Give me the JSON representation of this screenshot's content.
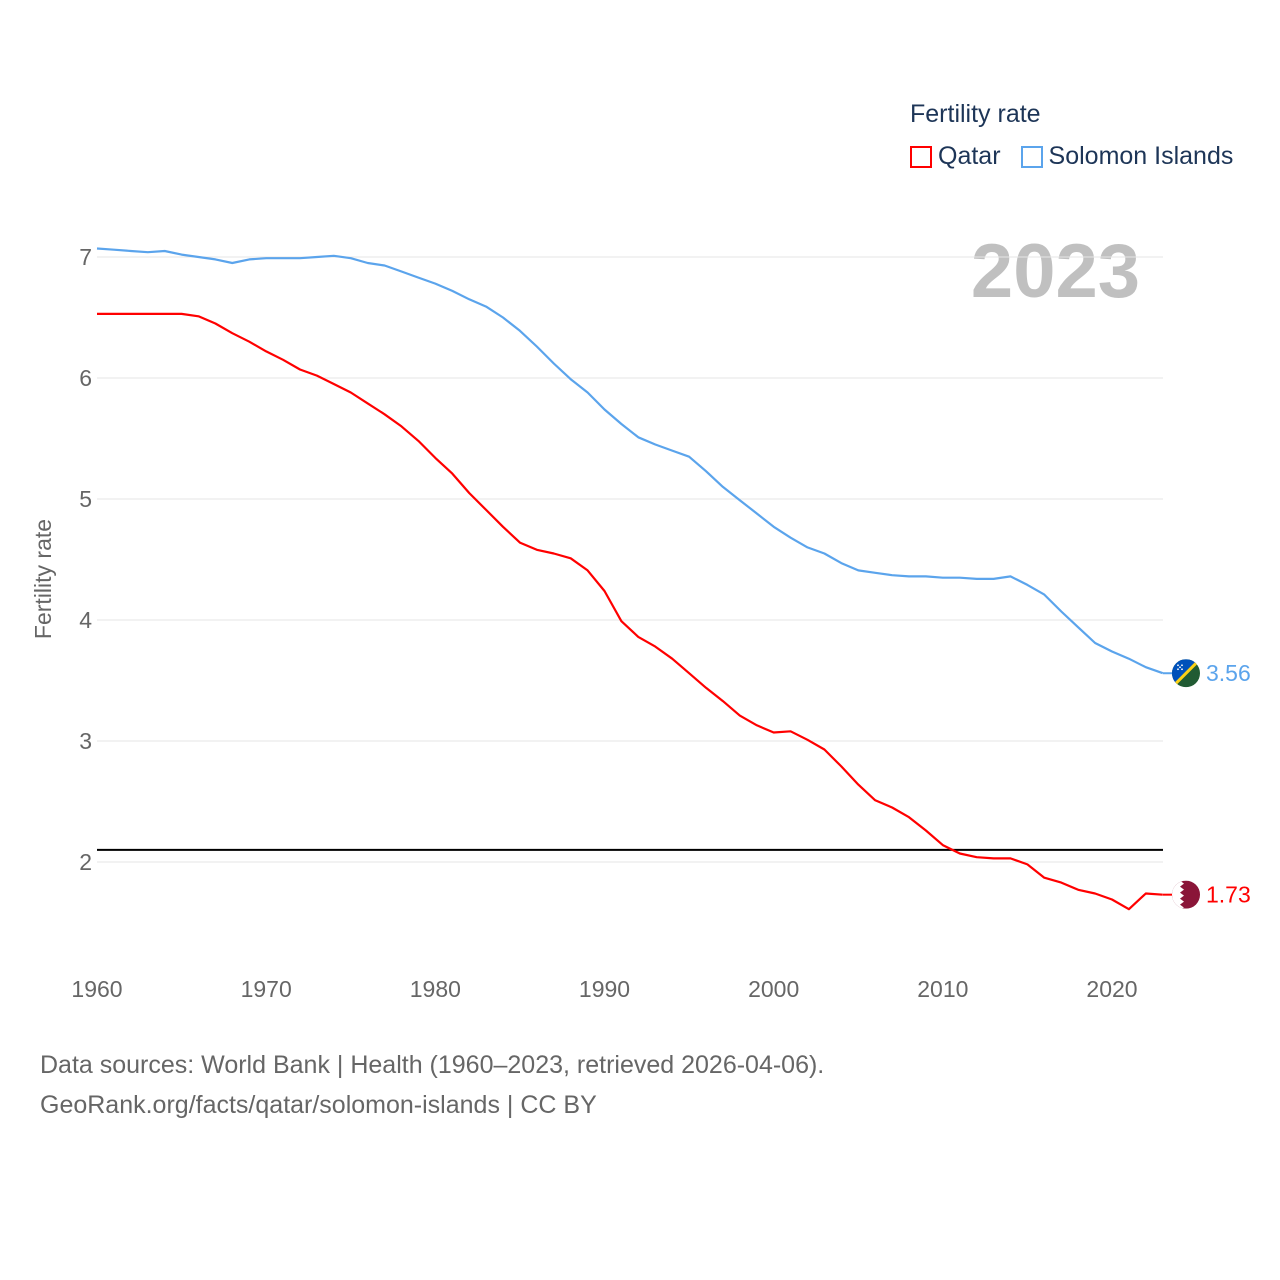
{
  "legend": {
    "title": "Fertility rate",
    "items": [
      "Qatar",
      "Solomon Islands"
    ]
  },
  "year_label": "2023",
  "source": {
    "line1": "Data sources: World Bank | Health (1960–2023, retrieved 2026-04-06).",
    "line2": "GeoRank.org/facts/qatar/solomon-islands | CC BY"
  },
  "chart_data": {
    "type": "line",
    "title": "",
    "xlabel": "",
    "ylabel": "Fertility rate",
    "xlim": [
      1960,
      2023
    ],
    "ylim": [
      1.2,
      7.3
    ],
    "x_ticks": [
      1960,
      1970,
      1980,
      1990,
      2000,
      2010,
      2020
    ],
    "y_ticks": [
      2,
      3,
      4,
      5,
      6,
      7
    ],
    "grid": true,
    "legend_position": "top-right",
    "reference_line": {
      "y": 2.1,
      "color": "#000000"
    },
    "x": [
      1960,
      1961,
      1962,
      1963,
      1964,
      1965,
      1966,
      1967,
      1968,
      1969,
      1970,
      1971,
      1972,
      1973,
      1974,
      1975,
      1976,
      1977,
      1978,
      1979,
      1980,
      1981,
      1982,
      1983,
      1984,
      1985,
      1986,
      1987,
      1988,
      1989,
      1990,
      1991,
      1992,
      1993,
      1994,
      1995,
      1996,
      1997,
      1998,
      1999,
      2000,
      2001,
      2002,
      2003,
      2004,
      2005,
      2006,
      2007,
      2008,
      2009,
      2010,
      2011,
      2012,
      2013,
      2014,
      2015,
      2016,
      2017,
      2018,
      2019,
      2020,
      2021,
      2022,
      2023
    ],
    "series": [
      {
        "name": "Qatar",
        "color": "#ff0000",
        "end_label": "1.73",
        "values": [
          6.53,
          6.53,
          6.53,
          6.53,
          6.53,
          6.53,
          6.51,
          6.45,
          6.37,
          6.3,
          6.22,
          6.15,
          6.07,
          6.02,
          5.95,
          5.88,
          5.79,
          5.7,
          5.6,
          5.48,
          5.34,
          5.21,
          5.05,
          4.91,
          4.77,
          4.64,
          4.58,
          4.55,
          4.51,
          4.41,
          4.24,
          3.99,
          3.86,
          3.78,
          3.68,
          3.56,
          3.44,
          3.33,
          3.21,
          3.13,
          3.07,
          3.08,
          3.01,
          2.93,
          2.79,
          2.64,
          2.51,
          2.45,
          2.37,
          2.26,
          2.14,
          2.07,
          2.04,
          2.03,
          2.03,
          1.98,
          1.87,
          1.83,
          1.77,
          1.74,
          1.69,
          1.61,
          1.74,
          1.73
        ]
      },
      {
        "name": "Solomon Islands",
        "color": "#5ba4ec",
        "end_label": "3.56",
        "values": [
          7.07,
          7.06,
          7.05,
          7.04,
          7.05,
          7.02,
          7.0,
          6.98,
          6.95,
          6.98,
          6.99,
          6.99,
          6.99,
          7.0,
          7.01,
          6.99,
          6.95,
          6.93,
          6.88,
          6.83,
          6.78,
          6.72,
          6.65,
          6.59,
          6.5,
          6.39,
          6.26,
          6.12,
          5.99,
          5.88,
          5.74,
          5.62,
          5.51,
          5.45,
          5.4,
          5.35,
          5.23,
          5.1,
          4.99,
          4.88,
          4.77,
          4.68,
          4.6,
          4.55,
          4.47,
          4.41,
          4.39,
          4.37,
          4.36,
          4.36,
          4.35,
          4.35,
          4.34,
          4.34,
          4.36,
          4.29,
          4.21,
          4.07,
          3.94,
          3.81,
          3.74,
          3.68,
          3.61,
          3.56
        ]
      }
    ]
  }
}
